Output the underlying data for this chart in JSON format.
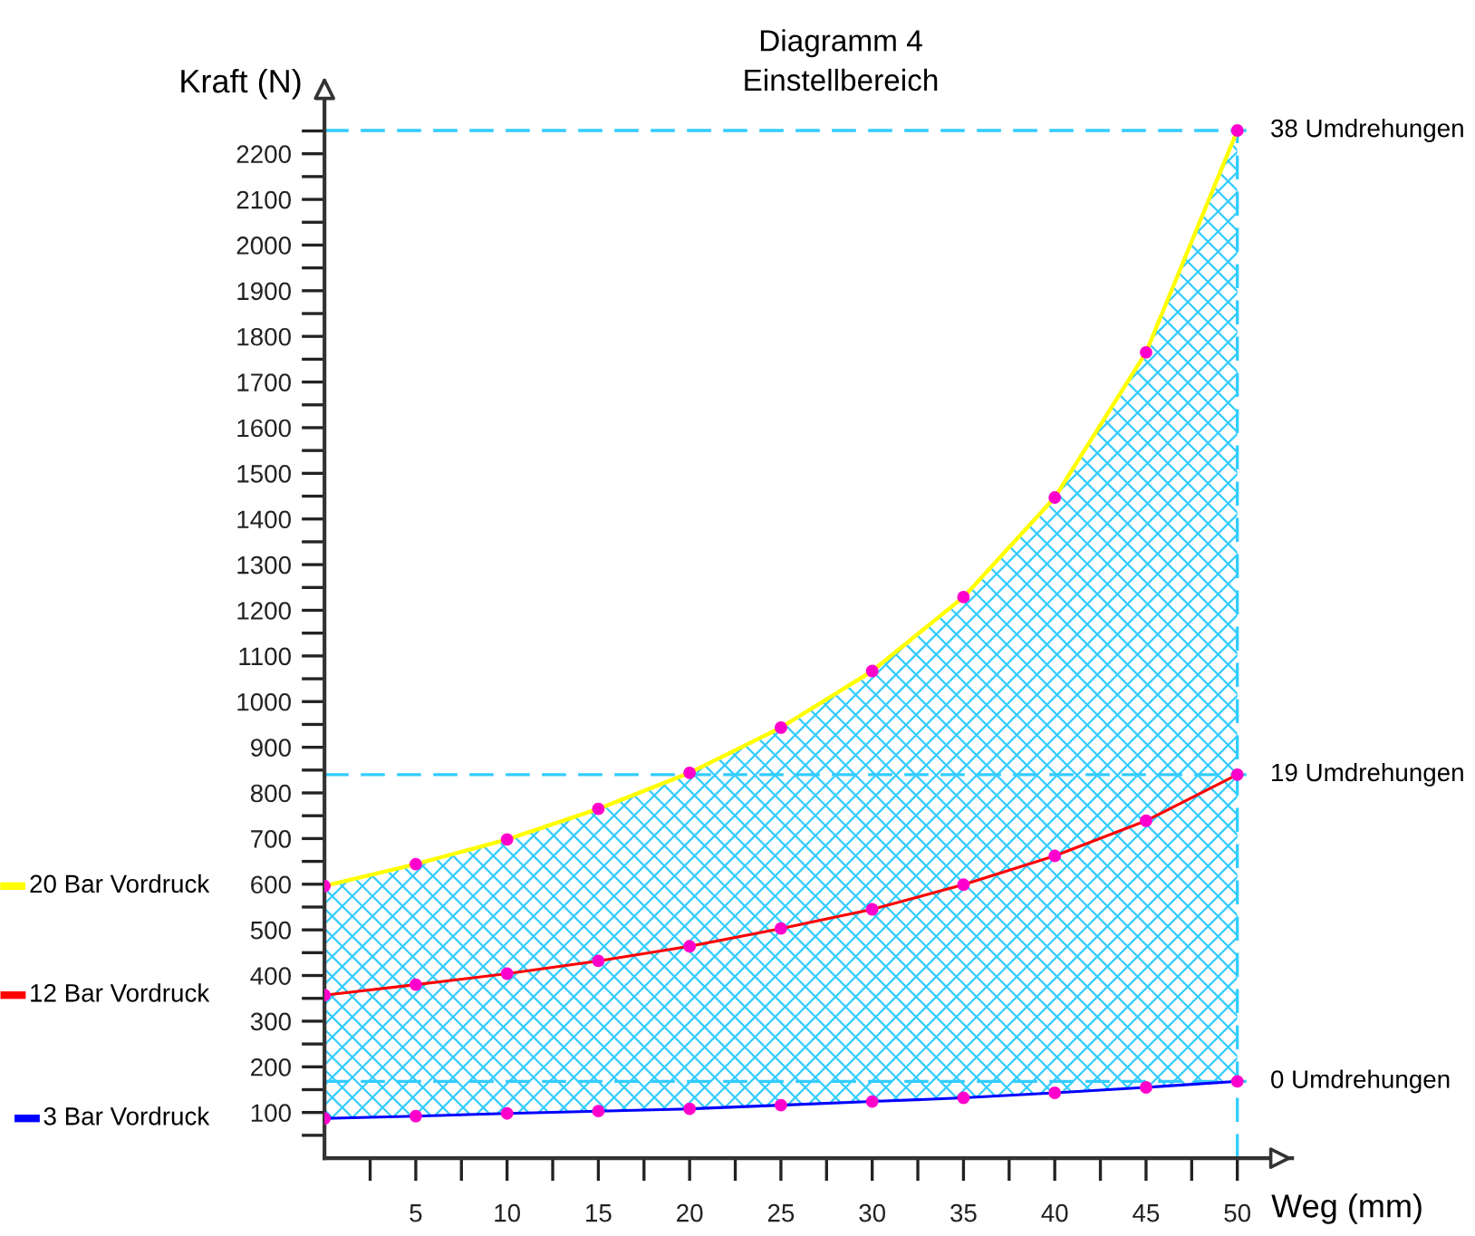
{
  "chart_data": {
    "type": "line",
    "title": "Diagramm 4",
    "subtitle": "Einstellbereich",
    "xlabel": "Weg (mm)",
    "ylabel": "Kraft (N)",
    "x": [
      0,
      5,
      10,
      15,
      20,
      25,
      30,
      35,
      40,
      45,
      50
    ],
    "series": [
      {
        "name": "20 Bar Vordruck",
        "color": "#ffff00",
        "values": [
          596,
          644,
          698,
          765,
          844,
          943,
          1067,
          1229,
          1447,
          1765,
          2251
        ],
        "lower": [
          87,
          92,
          98,
          103,
          108,
          116,
          124,
          132,
          143,
          155,
          168
        ],
        "upper": [
          596,
          644,
          698,
          765,
          844,
          943,
          1067,
          1229,
          1447,
          1765,
          2251
        ]
      },
      {
        "name": "12 Bar Vordruck",
        "color": "#ff0000",
        "values": [
          357,
          380,
          404,
          432,
          464,
          503,
          545,
          599,
          662,
          739,
          840
        ]
      },
      {
        "name": "3 Bar Vordruck",
        "color": "#0000ff",
        "values": [
          87,
          92,
          98,
          103,
          108,
          116,
          124,
          132,
          143,
          155,
          168
        ]
      }
    ],
    "marker": "circle",
    "line_style": "solid",
    "grid": false,
    "legend": "left",
    "xlim": [
      0,
      53
    ],
    "ylim": [
      0,
      2350
    ],
    "xticks": [
      {
        "value": 2.5,
        "label": null
      },
      5,
      {
        "value": 7.5,
        "label": null
      },
      10,
      {
        "value": 12.5,
        "label": null
      },
      15,
      {
        "value": 17.5,
        "label": null
      },
      20,
      {
        "value": 22.5,
        "label": null
      },
      25,
      {
        "value": 27.5,
        "label": null
      },
      30,
      {
        "value": 32.5,
        "label": null
      },
      35,
      {
        "value": 37.5,
        "label": null
      },
      40,
      {
        "value": 42.5,
        "label": null
      },
      45,
      {
        "value": 47.5,
        "label": null
      },
      50
    ],
    "yticks": [
      {
        "value": 50,
        "label": null
      },
      100,
      {
        "value": 150,
        "label": null
      },
      200,
      {
        "value": 250,
        "label": null
      },
      300,
      {
        "value": 350,
        "label": null
      },
      400,
      {
        "value": 450,
        "label": null
      },
      500,
      {
        "value": 550,
        "label": null
      },
      600,
      {
        "value": 650,
        "label": null
      },
      700,
      {
        "value": 750,
        "label": null
      },
      800,
      {
        "value": 850,
        "label": null
      },
      900,
      {
        "value": 950,
        "label": null
      },
      1000,
      {
        "value": 1050,
        "label": null
      },
      1100,
      {
        "value": 1150,
        "label": null
      },
      1200,
      {
        "value": 1250,
        "label": null
      },
      1300,
      {
        "value": 1350,
        "label": null
      },
      1400,
      {
        "value": 1450,
        "label": null
      },
      1500,
      {
        "value": 1550,
        "label": null
      },
      1600,
      {
        "value": 1650,
        "label": null
      },
      1700,
      {
        "value": 1750,
        "label": null
      },
      1800,
      {
        "value": 1850,
        "label": null
      },
      1900,
      {
        "value": 1950,
        "label": null
      },
      2000,
      {
        "value": 2050,
        "label": null
      },
      2100,
      {
        "value": 2150,
        "label": null
      },
      2200,
      {
        "value": 2250,
        "label": null
      }
    ],
    "ref_lines": [
      {
        "axis": "y",
        "value": 2251,
        "label": "38 Umdrehungen",
        "color": "#33ccff",
        "line_style": "dashed"
      },
      {
        "axis": "y",
        "value": 840,
        "label": "19 Umdrehungen",
        "color": "#33ccff",
        "line_style": "dashed"
      },
      {
        "axis": "y",
        "value": 168,
        "label": "0 Umdrehungen",
        "color": "#33ccff",
        "line_style": "dashed"
      },
      {
        "axis": "x",
        "value": 50,
        "label": null,
        "color": "#33ccff",
        "line_style": "dashed"
      }
    ]
  }
}
